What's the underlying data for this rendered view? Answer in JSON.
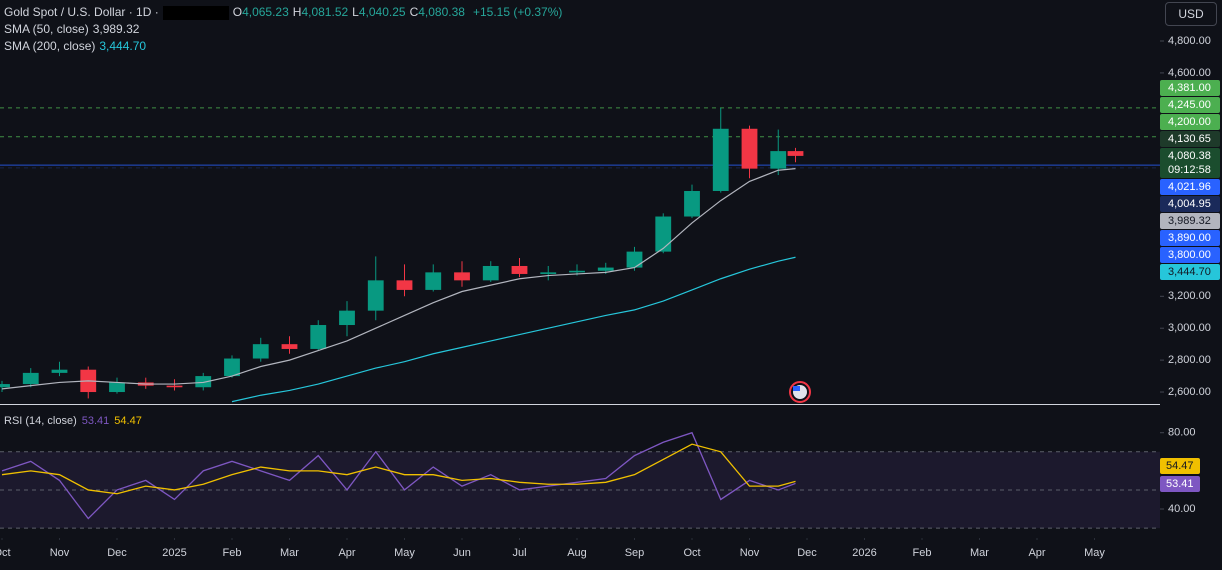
{
  "chart_data": {
    "type": "candlestick",
    "header": {
      "title": "Gold Spot / U.S. Dollar · 1D ·",
      "ohlc": [
        {
          "key": "O",
          "value": "4,065.23"
        },
        {
          "key": "H",
          "value": "4,081.52"
        },
        {
          "key": "L",
          "value": "4,040.25"
        },
        {
          "key": "C",
          "value": "4,080.38"
        }
      ],
      "change": "+15.15 (+0.37%)",
      "currency": "USD"
    },
    "indicators": [
      {
        "name": "SMA (50, close)",
        "value": "3,989.32",
        "color": "#d1d4dc"
      },
      {
        "name": "SMA (200, close)",
        "value": "3,444.70",
        "color": "#26c6da"
      }
    ],
    "xlim": [
      0,
      20
    ],
    "xticks": [
      {
        "value": 0,
        "label": "Oct"
      },
      {
        "value": 1,
        "label": "Nov"
      },
      {
        "value": 2,
        "label": "Dec"
      },
      {
        "value": 3,
        "label": "2025"
      },
      {
        "value": 4,
        "label": "Feb"
      },
      {
        "value": 5,
        "label": "Mar"
      },
      {
        "value": 6,
        "label": "Apr"
      },
      {
        "value": 7,
        "label": "May"
      },
      {
        "value": 8,
        "label": "Jun"
      },
      {
        "value": 9,
        "label": "Jul"
      },
      {
        "value": 10,
        "label": "Aug"
      },
      {
        "value": 11,
        "label": "Sep"
      },
      {
        "value": 12,
        "label": "Oct"
      },
      {
        "value": 13,
        "label": "Nov"
      },
      {
        "value": 14,
        "label": "Dec"
      },
      {
        "value": 15,
        "label": "2026"
      },
      {
        "value": 16,
        "label": "Feb"
      },
      {
        "value": 17,
        "label": "Mar"
      },
      {
        "value": 18,
        "label": "Apr"
      },
      {
        "value": 19,
        "label": "May"
      }
    ],
    "ylim": [
      2525,
      5057
    ],
    "yticks": [
      {
        "value": 2600,
        "label": "2,600.00"
      },
      {
        "value": 2800,
        "label": "2,800.00"
      },
      {
        "value": 3000,
        "label": "3,000.00"
      },
      {
        "value": 3200,
        "label": "3,200.00"
      },
      {
        "value": 4600,
        "label": "4,600.00"
      },
      {
        "value": 4800,
        "label": "4,800.00"
      }
    ],
    "x": [
      0,
      0.5,
      1,
      1.5,
      2,
      2.5,
      3,
      3.5,
      4,
      4.5,
      5,
      5.5,
      6,
      6.5,
      7,
      7.5,
      8,
      8.5,
      9,
      9.5,
      10,
      10.5,
      11,
      11.5,
      12,
      12.5,
      13,
      13.5,
      13.8
    ],
    "open": [
      2630,
      2650,
      2720,
      2740,
      2600,
      2660,
      2640,
      2630,
      2700,
      2810,
      2900,
      2870,
      3020,
      3110,
      3300,
      3240,
      3350,
      3300,
      3390,
      3340,
      3350,
      3360,
      3380,
      3480,
      3700,
      3860,
      4250,
      4000,
      4110
    ],
    "high": [
      2670,
      2750,
      2790,
      2760,
      2690,
      2690,
      2680,
      2720,
      2830,
      2940,
      2950,
      3050,
      3170,
      3450,
      3400,
      3400,
      3420,
      3420,
      3440,
      3390,
      3400,
      3410,
      3510,
      3720,
      3900,
      4381,
      4270,
      4245,
      4130
    ],
    "low": [
      2600,
      2630,
      2700,
      2560,
      2590,
      2620,
      2610,
      2610,
      2690,
      2790,
      2840,
      2860,
      2950,
      3050,
      3200,
      3230,
      3260,
      3290,
      3320,
      3300,
      3330,
      3340,
      3360,
      3470,
      3690,
      3850,
      3940,
      3960,
      4040
    ],
    "close": [
      2650,
      2720,
      2740,
      2600,
      2660,
      2640,
      2630,
      2700,
      2810,
      2900,
      2870,
      3020,
      3110,
      3300,
      3240,
      3350,
      3300,
      3390,
      3340,
      3350,
      3360,
      3380,
      3480,
      3700,
      3860,
      4250,
      4000,
      4110,
      4080
    ],
    "up_color": "#089981",
    "down_color": "#f23645",
    "series": [
      {
        "name": "SMA (50, close)",
        "color": "#b2b5be",
        "values": [
          2620,
          2640,
          2660,
          2670,
          2660,
          2650,
          2650,
          2660,
          2700,
          2760,
          2800,
          2860,
          2920,
          3000,
          3080,
          3160,
          3230,
          3270,
          3310,
          3330,
          3340,
          3350,
          3380,
          3500,
          3660,
          3800,
          3920,
          3990,
          4000
        ]
      },
      {
        "name": "SMA (200, close)",
        "color": "#26c6da",
        "values": [
          null,
          null,
          null,
          null,
          null,
          null,
          null,
          null,
          2540,
          2580,
          2610,
          2650,
          2700,
          2750,
          2790,
          2840,
          2880,
          2920,
          2960,
          3000,
          3040,
          3080,
          3115,
          3170,
          3240,
          3310,
          3370,
          3420,
          3444.7
        ]
      }
    ],
    "price_labels": [
      {
        "value": 4381,
        "label": "4,381.00",
        "color": "#4caf50",
        "text_color": "#ffffff",
        "line": "dashed"
      },
      {
        "value": 4245,
        "label": "4,245.00",
        "color": "#4caf50",
        "text_color": "#ffffff"
      },
      {
        "value": 4200,
        "label": "4,200.00",
        "color": "#4caf50",
        "text_color": "#ffffff",
        "line": "dashed"
      },
      {
        "value": 4130.65,
        "label": "4,130.65",
        "color": "#1e3a2a",
        "text_color": "#ffffff"
      },
      {
        "value": 4080.38,
        "label": "4,080.38",
        "countdown": "09:12:58",
        "color": "#1b4d2e",
        "text_color": "#ffffff"
      },
      {
        "value": 4021.96,
        "label": "4,021.96",
        "color": "#2962ff",
        "text_color": "#ffffff",
        "line": "solid"
      },
      {
        "value": 4004.95,
        "label": "4,004.95",
        "color": "#1a2a5a",
        "text_color": "#ffffff",
        "line": "dashed"
      },
      {
        "value": 3989.32,
        "label": "3,989.32",
        "color": "#b2b5be",
        "text_color": "#131722"
      },
      {
        "value": 3890,
        "label": "3,890.00",
        "color": "#2962ff",
        "text_color": "#ffffff"
      },
      {
        "value": 3800,
        "label": "3,800.00",
        "color": "#2962ff",
        "text_color": "#ffffff"
      },
      {
        "value": 3444.7,
        "label": "3,444.70",
        "color": "#26c6da",
        "text_color": "#131722"
      }
    ],
    "rsi": {
      "title": "RSI (14, close)",
      "ylim": [
        29,
        94
      ],
      "yticks": [
        {
          "value": 80,
          "label": "80.00"
        },
        {
          "value": 40,
          "label": "40.00"
        }
      ],
      "bands": [
        70,
        50,
        30
      ],
      "series": [
        {
          "name": "RSI",
          "color": "#7e57c2",
          "last": "53.41",
          "values": [
            60,
            65,
            55,
            35,
            50,
            55,
            45,
            60,
            65,
            60,
            55,
            68,
            50,
            70,
            50,
            62,
            52,
            58,
            50,
            52,
            54,
            56,
            68,
            75,
            80,
            45,
            55,
            50,
            53.41
          ]
        },
        {
          "name": "RSI MA",
          "color": "#f0c000",
          "last": "54.47",
          "values": [
            58,
            60,
            58,
            50,
            48,
            52,
            50,
            53,
            58,
            62,
            60,
            60,
            58,
            62,
            58,
            58,
            55,
            56,
            54,
            53,
            53,
            54,
            58,
            66,
            74,
            70,
            52,
            52,
            54.47
          ]
        }
      ]
    }
  }
}
